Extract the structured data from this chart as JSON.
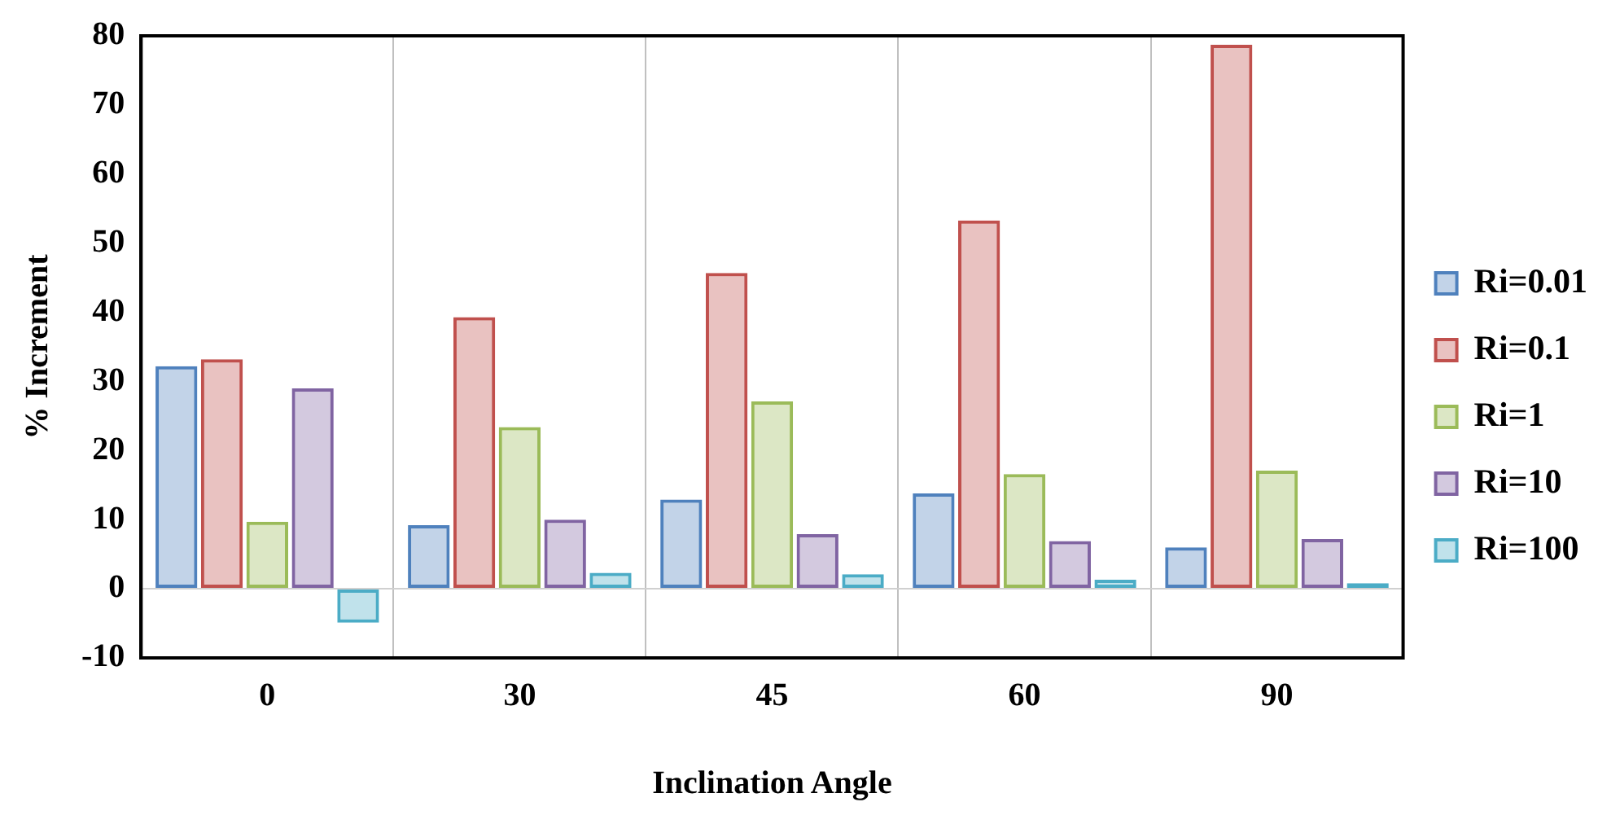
{
  "chart_data": {
    "type": "bar",
    "xlabel": "Inclination Angle",
    "ylabel": "% Increment",
    "categories": [
      "0",
      "30",
      "45",
      "60",
      "90"
    ],
    "series": [
      {
        "name": "Ri=0.01",
        "color": "#4f81bd",
        "values": [
          32.2,
          9.2,
          12.9,
          13.8,
          6.0
        ]
      },
      {
        "name": "Ri=0.1",
        "color": "#c0504d",
        "values": [
          33.2,
          39.3,
          45.7,
          53.3,
          78.7
        ]
      },
      {
        "name": "Ri=1",
        "color": "#9bbb59",
        "values": [
          9.7,
          23.4,
          27.1,
          16.6,
          17.1
        ]
      },
      {
        "name": "Ri=10",
        "color": "#8064a2",
        "values": [
          29.0,
          10.0,
          7.9,
          6.9,
          7.2
        ]
      },
      {
        "name": "Ri=100",
        "color": "#4bacc6",
        "values": [
          -4.9,
          2.3,
          2.1,
          1.3,
          0.8
        ]
      }
    ],
    "ylim": [
      -10,
      80
    ],
    "yticks": [
      -10,
      0,
      10,
      20,
      30,
      40,
      50,
      60,
      70,
      80
    ],
    "grid": "x",
    "legend": "right"
  }
}
